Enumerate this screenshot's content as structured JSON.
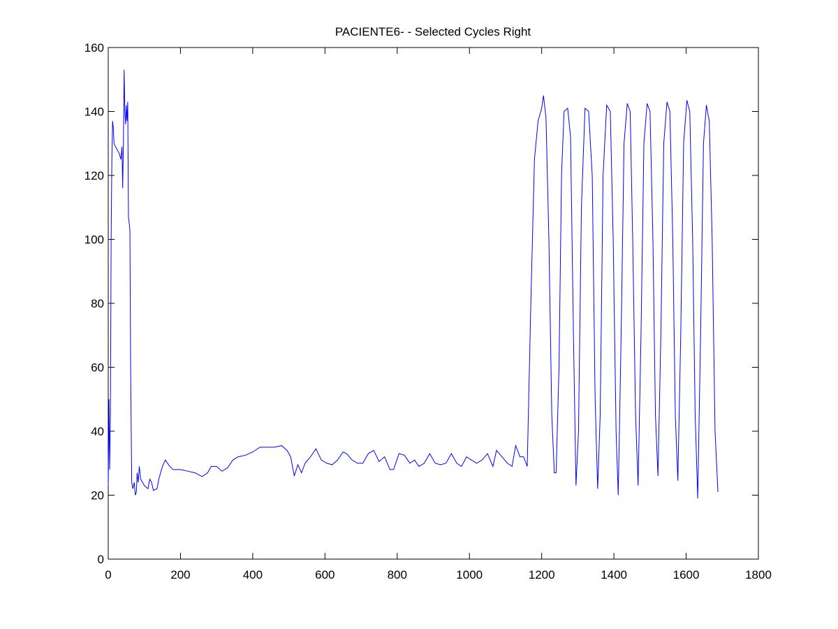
{
  "chart_data": {
    "type": "line",
    "title": "PACIENTE6- - Selected Cycles Right",
    "x": [
      0,
      2,
      4,
      6,
      8,
      10,
      12,
      14,
      16,
      20,
      25,
      30,
      35,
      38,
      40,
      42,
      44,
      46,
      48,
      50,
      52,
      54,
      56,
      58,
      60,
      62,
      65,
      68,
      72,
      75,
      78,
      80,
      83,
      86,
      90,
      95,
      100,
      110,
      115,
      120,
      125,
      135,
      140,
      150,
      158,
      170,
      180,
      200,
      220,
      240,
      260,
      275,
      285,
      300,
      315,
      330,
      345,
      360,
      380,
      400,
      420,
      440,
      460,
      480,
      495,
      505,
      515,
      525,
      535,
      545,
      560,
      575,
      590,
      605,
      620,
      635,
      650,
      660,
      675,
      690,
      705,
      720,
      735,
      750,
      765,
      780,
      790,
      805,
      820,
      835,
      848,
      860,
      875,
      890,
      905,
      920,
      935,
      950,
      965,
      978,
      992,
      1005,
      1020,
      1035,
      1050,
      1065,
      1075,
      1090,
      1105,
      1118,
      1128,
      1140,
      1150,
      1160,
      1170,
      1180,
      1190,
      1200,
      1205,
      1212,
      1220,
      1228,
      1235,
      1240,
      1248,
      1255,
      1262,
      1272,
      1280,
      1288,
      1295,
      1302,
      1310,
      1320,
      1330,
      1340,
      1348,
      1355,
      1362,
      1370,
      1380,
      1390,
      1398,
      1406,
      1412,
      1420,
      1428,
      1437,
      1445,
      1452,
      1460,
      1467,
      1475,
      1483,
      1492,
      1500,
      1508,
      1515,
      1522,
      1530,
      1538,
      1547,
      1555,
      1563,
      1570,
      1577,
      1585,
      1593,
      1602,
      1610,
      1618,
      1625,
      1632,
      1640,
      1648,
      1656,
      1664,
      1672,
      1680,
      1688
    ],
    "series": [
      {
        "color": "#0000ff",
        "values": [
          23,
          50,
          28,
          45,
          100,
          125,
          137,
          135,
          130,
          129,
          128,
          127,
          125,
          129,
          116,
          130,
          153,
          140,
          136,
          142,
          137,
          143,
          107,
          105,
          103,
          60,
          24,
          22,
          24,
          20,
          21,
          27,
          24,
          29,
          25,
          24,
          23,
          22,
          25,
          24,
          21.5,
          22,
          25,
          29,
          31,
          29,
          28,
          28,
          27.5,
          27,
          25.8,
          27,
          29,
          29,
          27.5,
          28.5,
          31,
          32,
          32.5,
          33.5,
          35,
          35,
          35,
          35.5,
          34,
          32,
          26,
          29.5,
          27,
          30,
          32,
          34.5,
          31,
          30,
          29.5,
          31,
          33.5,
          33,
          31,
          30,
          30,
          33,
          34,
          30.5,
          32,
          28,
          28,
          33,
          32.5,
          30,
          31,
          29,
          30,
          33,
          30,
          29.5,
          30,
          33,
          30,
          29,
          32,
          31,
          30,
          31,
          33,
          29,
          34,
          32,
          30,
          29,
          35.5,
          32,
          32,
          29,
          80,
          125,
          137,
          141,
          145,
          138,
          100,
          45,
          27,
          27,
          60,
          120,
          140,
          141,
          132,
          70,
          23,
          40,
          110,
          141,
          140,
          120,
          50,
          22,
          45,
          120,
          142,
          140,
          100,
          40,
          20,
          70,
          130,
          142.5,
          140,
          100,
          45,
          23,
          70,
          130,
          142.5,
          140,
          100,
          45,
          26,
          70,
          130,
          143,
          140,
          100,
          45,
          24.5,
          70,
          130,
          143.5,
          140,
          100,
          45,
          19,
          70,
          130,
          142,
          137,
          100,
          40,
          21
        ]
      }
    ],
    "xlim": [
      0,
      1800
    ],
    "xticks": [
      0,
      200,
      400,
      600,
      800,
      1000,
      1200,
      1400,
      1600,
      1800
    ],
    "ylim": [
      0,
      160
    ],
    "yticks": [
      0,
      20,
      40,
      60,
      80,
      100,
      120,
      140,
      160
    ]
  }
}
